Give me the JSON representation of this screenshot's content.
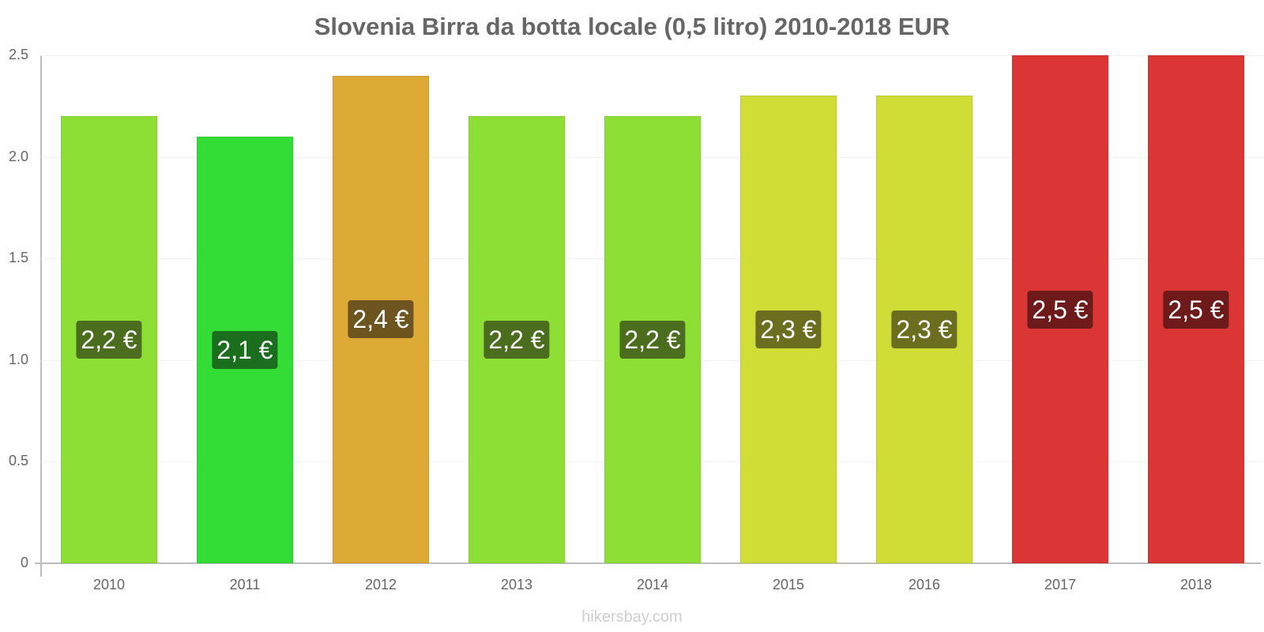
{
  "chart_data": {
    "type": "bar",
    "title": "Slovenia Birra da botta locale (0,5 litro) 2010-2018 EUR",
    "xlabel": "",
    "ylabel": "",
    "ylim": [
      0,
      2.5
    ],
    "yticks": [
      "0",
      "0.5",
      "1.0",
      "1.5",
      "2.0",
      "2.5"
    ],
    "grid": true,
    "legend": null,
    "categories": [
      "2010",
      "2011",
      "2012",
      "2013",
      "2014",
      "2015",
      "2016",
      "2017",
      "2018"
    ],
    "values": [
      2.2,
      2.1,
      2.4,
      2.2,
      2.2,
      2.3,
      2.3,
      2.5,
      2.5
    ],
    "data_labels": [
      "2,2 €",
      "2,1 €",
      "2,4 €",
      "2,2 €",
      "2,2 €",
      "2,3 €",
      "2,3 €",
      "2,5 €",
      "2,5 €"
    ],
    "bar_colors": [
      "#8ddf36",
      "#33dd36",
      "#dcaa35",
      "#8ddf36",
      "#8ddf36",
      "#d0dd36",
      "#d0dd36",
      "#dc3535",
      "#dc3535"
    ],
    "label_colors": [
      "#4a6e1e",
      "#1a6e1e",
      "#6e5520",
      "#4a6e1e",
      "#4a6e1e",
      "#6a6e1e",
      "#6a6e1e",
      "#6e1a1a",
      "#6e1a1a"
    ]
  },
  "watermark": "hikersbay.com"
}
